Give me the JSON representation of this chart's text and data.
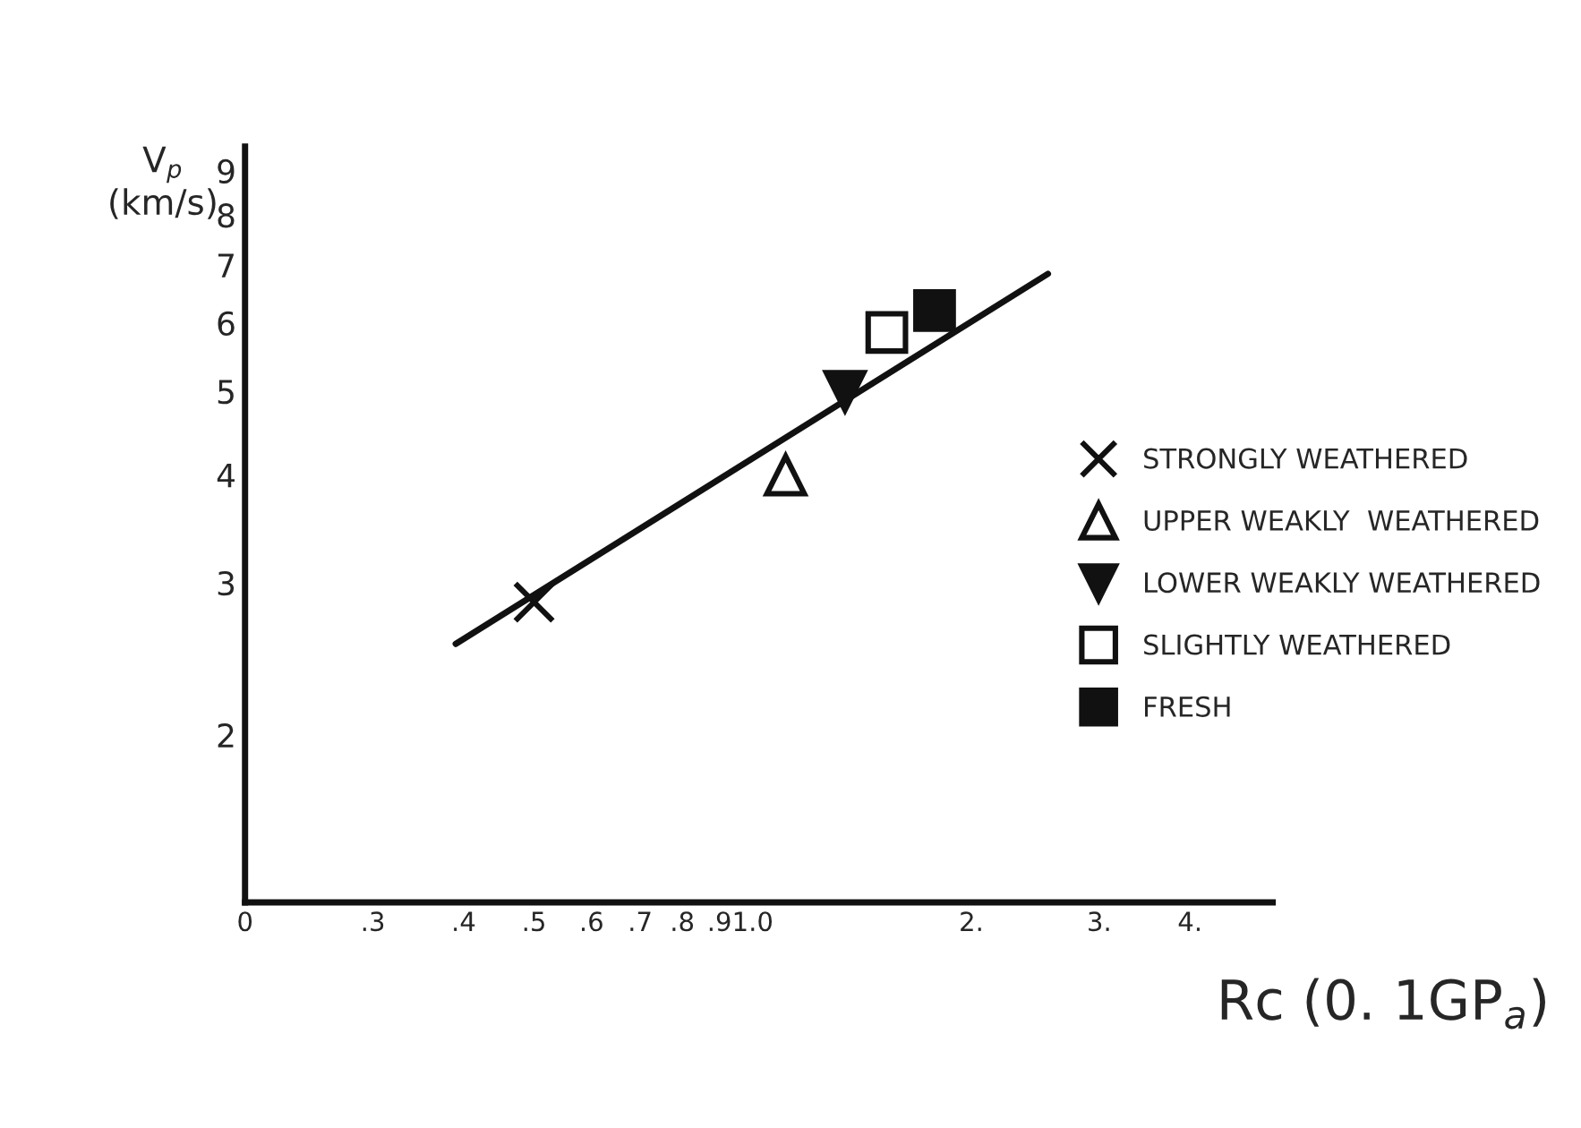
{
  "chart_data": {
    "type": "scatter",
    "xlabel": "Rc (0. 1GP$_{a}$)",
    "ylabel": "V$_{p}$\n(km/s)",
    "log": "xy",
    "xlim": [
      0.2,
      5.2
    ],
    "ylim": [
      1.28,
      9.6
    ],
    "xticks": [
      {
        "value": 0.2,
        "label": "0"
      },
      {
        "value": 0.3,
        "label": ".3"
      },
      {
        "value": 0.4,
        "label": ".4"
      },
      {
        "value": 0.5,
        "label": ".5"
      },
      {
        "value": 0.6,
        "label": ".6"
      },
      {
        "value": 0.7,
        "label": ".7"
      },
      {
        "value": 0.8,
        "label": ".8"
      },
      {
        "value": 0.9,
        "label": ".9"
      },
      {
        "value": 1.0,
        "label": "1.0"
      },
      {
        "value": 2,
        "label": "2."
      },
      {
        "value": 3,
        "label": "3."
      },
      {
        "value": 4,
        "label": "4."
      }
    ],
    "yticks": [
      2,
      3,
      4,
      5,
      6,
      7,
      8,
      9
    ],
    "grid": false,
    "legend": "right",
    "series": [
      {
        "type": "line",
        "x": [
          0.39,
          2.55
        ],
        "values": [
          2.55,
          6.84
        ],
        "color": "#111111",
        "marker": "none",
        "line_style": "solid"
      },
      {
        "name": "STRONGLY WEATHERED",
        "x": [
          0.5
        ],
        "values": [
          2.85
        ],
        "color": "#111111",
        "marker": "cross"
      },
      {
        "name": "UPPER WEAKLY  WEATHERED",
        "x": [
          1.11
        ],
        "values": [
          4.0
        ],
        "color": "#111111",
        "marker": "triangle_open"
      },
      {
        "name": "LOWER WEAKLY WEATHERED",
        "x": [
          1.34
        ],
        "values": [
          5.0
        ],
        "color": "#111111",
        "marker": "triangle_down"
      },
      {
        "name": "SLIGHTLY WEATHERED",
        "x": [
          1.53
        ],
        "values": [
          5.85
        ],
        "color": "#111111",
        "marker": "square_open"
      },
      {
        "name": "FRESH",
        "x": [
          1.78
        ],
        "values": [
          6.2
        ],
        "color": "#111111",
        "marker": "square"
      }
    ]
  }
}
